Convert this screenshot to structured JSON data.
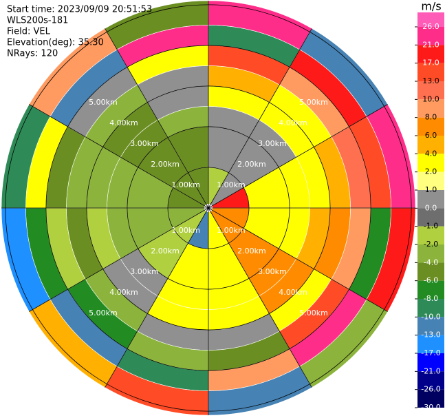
{
  "chart_data": {
    "type": "ppi",
    "info": [
      "Start time: 2023/09/09 20:51:53",
      "WLS200s-181",
      "Field: VEL",
      "Elevation(deg): 35.30",
      "NRays: 120"
    ],
    "colorbar_title": "m/s",
    "colorbar_ticks": [
      {
        "value": 26,
        "label": "26.0"
      },
      {
        "value": 21,
        "label": "21.0"
      },
      {
        "value": 17,
        "label": "17.0"
      },
      {
        "value": 13,
        "label": "13.0"
      },
      {
        "value": 10,
        "label": "10.0"
      },
      {
        "value": 8,
        "label": "8.0"
      },
      {
        "value": 6,
        "label": "6.0"
      },
      {
        "value": 4,
        "label": "4.0"
      },
      {
        "value": 2,
        "label": "2.0"
      },
      {
        "value": 1,
        "label": "1.0"
      },
      {
        "value": 0,
        "label": "0.0"
      },
      {
        "value": -1,
        "label": "-1.0"
      },
      {
        "value": -2,
        "label": "-2.0"
      },
      {
        "value": -4,
        "label": "-4.0"
      },
      {
        "value": -6,
        "label": "-6.0"
      },
      {
        "value": -8,
        "label": "-8.0"
      },
      {
        "value": -10,
        "label": "-10.0"
      },
      {
        "value": -13,
        "label": "-13.0"
      },
      {
        "value": -17,
        "label": "-17.0"
      },
      {
        "value": -21,
        "label": "-21.0"
      },
      {
        "value": -26,
        "label": "-26.0"
      },
      {
        "value": -30,
        "label": "-30.0"
      }
    ],
    "colors": [
      "#ff5cb8",
      "#ff2d8a",
      "#ff1a1a",
      "#ff4b26",
      "#ff7050",
      "#ff9a60",
      "#ff8c00",
      "#ffb000",
      "#ffff00",
      "#ffff80",
      "#909090",
      "#6e6e6e",
      "#b0d040",
      "#8cb43c",
      "#6b8e23",
      "#228b22",
      "#2e8b57",
      "#4682b4",
      "#1e90ff",
      "#0000ff",
      "#00008b",
      "#000060"
    ],
    "range_rings": [
      {
        "value": 1,
        "label": "1.00km"
      },
      {
        "value": 2,
        "label": "2.00km"
      },
      {
        "value": 3,
        "label": "3.00km"
      },
      {
        "value": 4,
        "label": "4.00km"
      },
      {
        "value": 5,
        "label": "5.00km"
      }
    ],
    "max_range": 5.1,
    "gate_edges": [
      0.1,
      1,
      2,
      2.5,
      3,
      3.5,
      4,
      4.5,
      5.1
    ],
    "sector_starts": [
      0,
      30,
      60,
      90,
      120,
      150,
      180,
      210,
      240,
      270,
      300,
      330
    ],
    "sectors": [
      [
        -2,
        0,
        0,
        2,
        4,
        13,
        -10,
        21
      ],
      [
        0,
        0,
        0,
        2,
        2,
        8,
        17,
        -13
      ],
      [
        17,
        2,
        2,
        2,
        4,
        10,
        13,
        21
      ],
      [
        6,
        2,
        2,
        4,
        6,
        8,
        -8,
        17
      ],
      [
        6,
        6,
        6,
        6,
        2,
        13,
        21,
        -4
      ],
      [
        2,
        2,
        2,
        2,
        0,
        -6,
        8,
        -13
      ],
      [
        -13,
        2,
        2,
        2,
        0,
        -4,
        -10,
        13
      ],
      [
        -2,
        -2,
        0,
        0,
        -4,
        -8,
        -13,
        4
      ],
      [
        -4,
        -4,
        -4,
        -2,
        -6,
        -2,
        -8,
        -17
      ],
      [
        -6,
        -4,
        -4,
        -4,
        -4,
        -6,
        2,
        -10
      ],
      [
        -6,
        -6,
        -6,
        -6,
        -4,
        0,
        -13,
        8
      ],
      [
        -6,
        -6,
        -4,
        0,
        0,
        2,
        21,
        -6
      ]
    ]
  }
}
